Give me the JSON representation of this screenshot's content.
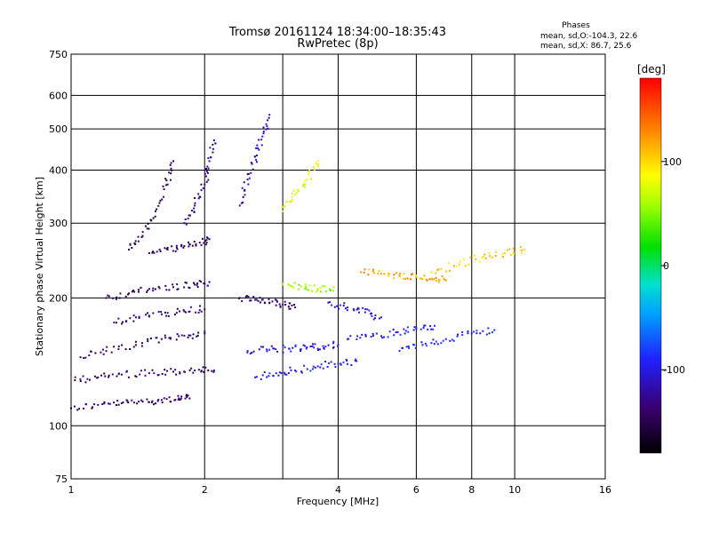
{
  "chart_data": {
    "type": "scatter",
    "title": "Tromsø 20161124 18:34:00–18:35:43",
    "subtitle": "RwPretec (8p)",
    "xlabel": "Frequency [MHz]",
    "ylabel": "Stationary phase Virtual Height [km]",
    "x_scale": "log",
    "y_scale": "log",
    "xlim": [
      1,
      16
    ],
    "ylim": [
      75,
      750
    ],
    "x_ticks": [
      "1",
      "2",
      "4",
      "6",
      "8",
      "10",
      "16"
    ],
    "x_tick_values": [
      1,
      2,
      4,
      6,
      8,
      10,
      16
    ],
    "x_grid": [
      2,
      3,
      4,
      6,
      8,
      10
    ],
    "y_ticks": [
      "750",
      "600",
      "500",
      "400",
      "300",
      "200",
      "100",
      "75"
    ],
    "y_tick_values": [
      750,
      600,
      500,
      400,
      300,
      200,
      100,
      75
    ],
    "y_grid": [
      600,
      500,
      400,
      300,
      200,
      100
    ],
    "grid": true,
    "stats": {
      "heading": "Phases",
      "line1": "mean, sd,O:-104.3, 22.6",
      "line2": "mean, sd,X:  86.7, 25.6"
    },
    "colorbar": {
      "label": "[deg]",
      "min": -180,
      "max": 180,
      "ticks": [
        "100",
        "0",
        "-100"
      ],
      "tick_values": [
        100,
        0,
        -100
      ]
    },
    "traces": [
      {
        "x": [
          1.0,
          1.15,
          1.3,
          1.45,
          1.6,
          1.75,
          1.85
        ],
        "y": [
          110,
          112,
          113,
          114,
          115,
          116,
          116
        ],
        "phase": -140,
        "n": 7
      },
      {
        "x": [
          1.02,
          1.15,
          1.3,
          1.5,
          1.7,
          1.9,
          2.1
        ],
        "y": [
          128,
          130,
          132,
          133,
          134,
          135,
          135
        ],
        "phase": -140,
        "n": 7
      },
      {
        "x": [
          1.05,
          1.2,
          1.4,
          1.6,
          1.8,
          2.0
        ],
        "y": [
          145,
          150,
          155,
          160,
          163,
          165
        ],
        "phase": -140,
        "n": 6
      },
      {
        "x": [
          1.2,
          1.35,
          1.5,
          1.7,
          1.9,
          2.05
        ],
        "y": [
          200,
          205,
          210,
          212,
          215,
          218
        ],
        "phase": -140,
        "n": 6
      },
      {
        "x": [
          1.25,
          1.4,
          1.6,
          1.8,
          2.0
        ],
        "y": [
          175,
          180,
          183,
          186,
          188
        ],
        "phase": -140,
        "n": 5
      },
      {
        "x": [
          1.35,
          1.45,
          1.55,
          1.65,
          1.7
        ],
        "y": [
          260,
          280,
          320,
          370,
          420
        ],
        "phase": -145,
        "n": 5
      },
      {
        "x": [
          1.5,
          1.65,
          1.8,
          1.95,
          2.05
        ],
        "y": [
          255,
          260,
          265,
          270,
          275
        ],
        "phase": -140,
        "n": 5
      },
      {
        "x": [
          1.8,
          1.9,
          2.0,
          2.05,
          2.1
        ],
        "y": [
          300,
          330,
          370,
          420,
          470
        ],
        "phase": -130,
        "n": 5
      },
      {
        "x": [
          2.4,
          2.5,
          2.6,
          2.7,
          2.8
        ],
        "y": [
          330,
          380,
          430,
          480,
          540
        ],
        "phase": -115,
        "n": 5
      },
      {
        "x": [
          2.4,
          2.6,
          2.8,
          3.0,
          3.2
        ],
        "y": [
          200,
          198,
          195,
          193,
          190
        ],
        "phase": -135,
        "n": 5
      },
      {
        "x": [
          2.5,
          2.8,
          3.1,
          3.4,
          3.7,
          4.0
        ],
        "y": [
          150,
          151,
          152,
          153,
          154,
          155
        ],
        "phase": -100,
        "n": 6
      },
      {
        "x": [
          2.6,
          2.9,
          3.2,
          3.6,
          4.0,
          4.4
        ],
        "y": [
          130,
          133,
          135,
          138,
          140,
          142
        ],
        "phase": -95,
        "n": 6
      },
      {
        "x": [
          3.0,
          3.2,
          3.4,
          3.6
        ],
        "y": [
          320,
          350,
          380,
          420
        ],
        "phase": 80,
        "n": 4
      },
      {
        "x": [
          3.0,
          3.3,
          3.6,
          3.9
        ],
        "y": [
          215,
          213,
          210,
          208
        ],
        "phase": 60,
        "n": 4
      },
      {
        "x": [
          3.8,
          4.2,
          4.6,
          5.0
        ],
        "y": [
          195,
          190,
          185,
          180
        ],
        "phase": -105,
        "n": 4
      },
      {
        "x": [
          4.2,
          4.8,
          5.4,
          6.0,
          6.6
        ],
        "y": [
          160,
          163,
          166,
          169,
          172
        ],
        "phase": -95,
        "n": 5
      },
      {
        "x": [
          4.5,
          5.0,
          5.5,
          6.0,
          6.5,
          7.0
        ],
        "y": [
          230,
          228,
          226,
          224,
          222,
          220
        ],
        "phase": 120,
        "n": 6
      },
      {
        "x": [
          5.5,
          6.2,
          7.0,
          8.0,
          9.0
        ],
        "y": [
          150,
          155,
          160,
          165,
          168
        ],
        "phase": -90,
        "n": 5
      },
      {
        "x": [
          6.5,
          7.5,
          8.5,
          9.5,
          10.5
        ],
        "y": [
          230,
          240,
          250,
          255,
          260
        ],
        "phase": 100,
        "n": 5
      }
    ]
  }
}
